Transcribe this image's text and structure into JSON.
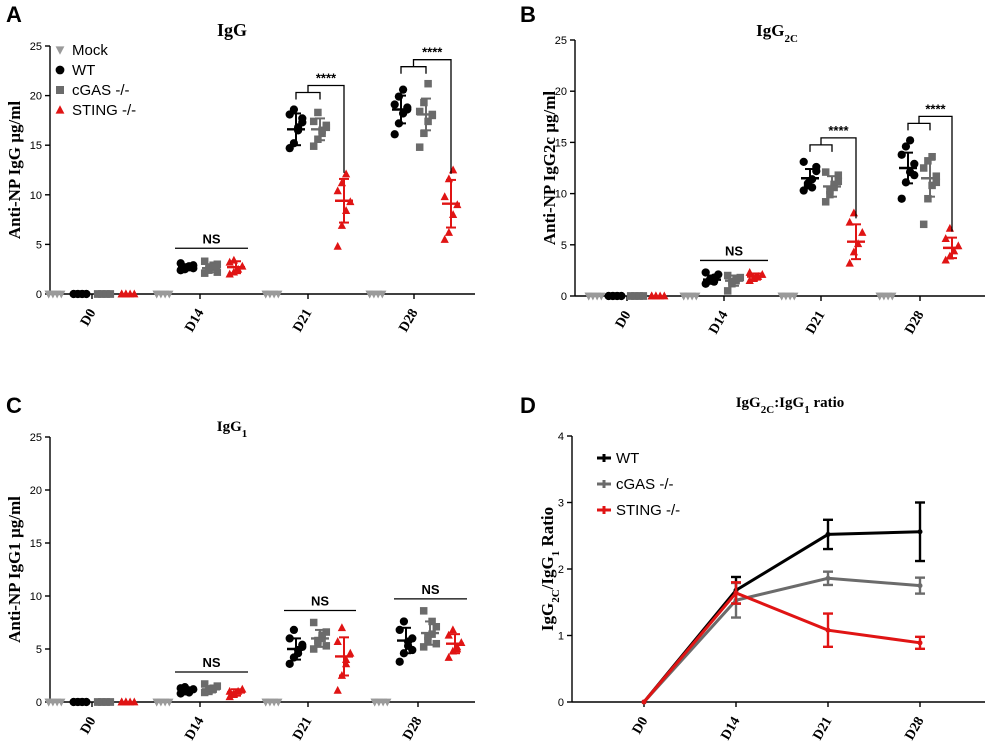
{
  "chart_data": [
    {
      "panel": "A",
      "type": "scatter",
      "title": "IgG",
      "ylabel": "Anti-NP IgG µg/ml",
      "ylim": [
        0,
        25
      ],
      "yticks": [
        0,
        5,
        10,
        15,
        20,
        25
      ],
      "categories": [
        "D0",
        "D14",
        "D21",
        "D28"
      ],
      "legend": [
        "Mock",
        "WT",
        "cGAS -/-",
        "STING -/-"
      ],
      "series": [
        {
          "name": "Mock",
          "color": "#9a9a9a",
          "marker": "triangle-down",
          "values": [
            [
              0,
              0,
              0,
              0,
              0
            ],
            [
              0,
              0,
              0,
              0,
              0
            ],
            [
              0,
              0,
              0,
              0,
              0
            ],
            [
              0,
              0,
              0,
              0,
              0
            ]
          ],
          "mean": [
            0,
            0,
            0,
            0
          ],
          "sd": [
            0,
            0,
            0,
            0
          ]
        },
        {
          "name": "WT",
          "color": "#000000",
          "marker": "circle",
          "values": [
            [
              0,
              0,
              0,
              0,
              0,
              0,
              0,
              0
            ],
            [
              2.4,
              2.6,
              2.7,
              2.9,
              3.1,
              2.5,
              2.8,
              2.6
            ],
            [
              14.7,
              15.2,
              16.5,
              17.3,
              18.1,
              18.6,
              16.8,
              17.7
            ],
            [
              16.1,
              17.2,
              18.2,
              18.6,
              19.1,
              19.9,
              20.6,
              18.8
            ]
          ],
          "mean": [
            0,
            2.7,
            16.6,
            18.6
          ],
          "sd": [
            0,
            0.3,
            1.6,
            1.4
          ]
        },
        {
          "name": "cGAS -/-",
          "color": "#6b6b6b",
          "marker": "square",
          "values": [
            [
              0,
              0,
              0,
              0,
              0,
              0,
              0,
              0
            ],
            [
              2.1,
              2.4,
              2.7,
              3.0,
              3.3,
              2.6,
              2.9,
              2.2
            ],
            [
              14.9,
              15.6,
              16.2,
              16.8,
              17.4,
              18.3,
              16.5,
              17.0
            ],
            [
              14.8,
              16.2,
              17.4,
              18.0,
              18.4,
              19.3,
              21.2,
              18.1
            ]
          ],
          "mean": [
            0,
            2.6,
            16.6,
            18.1
          ],
          "sd": [
            0,
            0.4,
            1.1,
            1.6
          ]
        },
        {
          "name": "STING -/-",
          "color": "#e01414",
          "marker": "triangle",
          "values": [
            [
              0,
              0,
              0,
              0,
              0,
              0
            ],
            [
              2.0,
              2.2,
              2.5,
              2.8,
              3.2,
              3.4
            ],
            [
              4.8,
              6.9,
              8.4,
              9.3,
              10.4,
              11.2,
              12.1
            ],
            [
              5.5,
              6.2,
              8.0,
              9.0,
              9.8,
              11.6,
              12.5
            ]
          ],
          "mean": [
            0,
            2.7,
            9.4,
            9.1
          ],
          "sd": [
            0,
            0.6,
            2.2,
            2.4
          ]
        }
      ],
      "annotations": [
        {
          "group": "D14",
          "text": "NS"
        },
        {
          "group": "D21",
          "text": "****"
        },
        {
          "group": "D28",
          "text": "****"
        }
      ]
    },
    {
      "panel": "B",
      "type": "scatter",
      "title": "IgG",
      "title_sub": "2C",
      "ylabel": "Anti-NP IgG2c µg/ml",
      "ylim": [
        0,
        25
      ],
      "yticks": [
        0,
        5,
        10,
        15,
        20,
        25
      ],
      "categories": [
        "D0",
        "D14",
        "D21",
        "D28"
      ],
      "series": [
        {
          "name": "Mock",
          "color": "#9a9a9a",
          "marker": "triangle-down",
          "values": [
            [
              0,
              0,
              0,
              0,
              0
            ],
            [
              0,
              0,
              0,
              0,
              0
            ],
            [
              0,
              0,
              0,
              0,
              0
            ],
            [
              0,
              0,
              0,
              0,
              0
            ]
          ],
          "mean": [
            0,
            0,
            0,
            0
          ],
          "sd": [
            0,
            0,
            0,
            0
          ]
        },
        {
          "name": "WT",
          "color": "#000000",
          "marker": "circle",
          "values": [
            [
              0,
              0,
              0,
              0,
              0,
              0,
              0,
              0
            ],
            [
              1.2,
              1.5,
              1.8,
              2.1,
              2.3,
              1.6,
              1.4
            ],
            [
              10.3,
              10.8,
              11.4,
              12.2,
              13.1,
              11.0,
              10.6,
              12.6
            ],
            [
              9.5,
              11.1,
              12.1,
              12.9,
              13.8,
              14.6,
              15.2,
              11.8
            ]
          ],
          "mean": [
            0,
            1.6,
            11.5,
            12.5
          ],
          "sd": [
            0,
            0.4,
            0.9,
            1.5
          ]
        },
        {
          "name": "cGAS -/-",
          "color": "#6b6b6b",
          "marker": "square",
          "values": [
            [
              0,
              0,
              0,
              0,
              0,
              0,
              0,
              0
            ],
            [
              0.5,
              1.2,
              1.5,
              1.8,
              2.0,
              1.4,
              1.7
            ],
            [
              9.2,
              9.9,
              10.6,
              11.2,
              12.1,
              10.3,
              10.9,
              11.8
            ],
            [
              7.0,
              9.5,
              10.8,
              11.7,
              12.5,
              13.2,
              13.6,
              11.1
            ]
          ],
          "mean": [
            0,
            1.5,
            10.7,
            11.5
          ],
          "sd": [
            0,
            0.5,
            1.0,
            1.8
          ]
        },
        {
          "name": "STING -/-",
          "color": "#e01414",
          "marker": "triangle",
          "values": [
            [
              0,
              0,
              0,
              0,
              0,
              0
            ],
            [
              1.5,
              1.7,
              1.9,
              2.1,
              2.3,
              1.8
            ],
            [
              3.2,
              4.3,
              5.1,
              6.2,
              7.2,
              8.1
            ],
            [
              3.5,
              3.9,
              4.4,
              4.9,
              5.6,
              6.6
            ]
          ],
          "mean": [
            0,
            1.9,
            5.3,
            4.7
          ],
          "sd": [
            0,
            0.3,
            1.7,
            1.0
          ]
        }
      ],
      "annotations": [
        {
          "group": "D14",
          "text": "NS"
        },
        {
          "group": "D21",
          "text": "****"
        },
        {
          "group": "D28",
          "text": "****"
        }
      ]
    },
    {
      "panel": "C",
      "type": "scatter",
      "title": "IgG",
      "title_sub": "1",
      "ylabel": "Anti-NP IgG1 µg/ml",
      "ylim": [
        0,
        25
      ],
      "yticks": [
        0,
        5,
        10,
        15,
        20,
        25
      ],
      "categories": [
        "D0",
        "D14",
        "D21",
        "D28"
      ],
      "series": [
        {
          "name": "Mock",
          "color": "#9a9a9a",
          "marker": "triangle-down",
          "values": [
            [
              0,
              0,
              0,
              0,
              0
            ],
            [
              0,
              0,
              0,
              0,
              0
            ],
            [
              0,
              0,
              0,
              0,
              0
            ],
            [
              0,
              0,
              0,
              0,
              0
            ]
          ],
          "mean": [
            0,
            0,
            0,
            0
          ],
          "sd": [
            0,
            0,
            0,
            0
          ]
        },
        {
          "name": "WT",
          "color": "#000000",
          "marker": "circle",
          "values": [
            [
              0,
              0,
              0,
              0,
              0,
              0,
              0,
              0
            ],
            [
              0.8,
              1.0,
              1.1,
              1.2,
              1.3,
              1.4,
              0.9
            ],
            [
              3.6,
              4.2,
              4.9,
              5.4,
              6.0,
              6.8,
              4.6,
              5.2
            ],
            [
              3.8,
              4.6,
              5.3,
              6.0,
              6.8,
              7.6,
              5.7,
              4.9
            ]
          ],
          "mean": [
            0,
            1.1,
            5.0,
            5.8
          ],
          "sd": [
            0,
            0.2,
            1.0,
            1.2
          ]
        },
        {
          "name": "cGAS -/-",
          "color": "#6b6b6b",
          "marker": "square",
          "values": [
            [
              0,
              0,
              0,
              0,
              0,
              0,
              0,
              0
            ],
            [
              0.9,
              1.1,
              1.3,
              1.5,
              1.7,
              1.0,
              1.2
            ],
            [
              5.0,
              5.5,
              6.0,
              6.6,
              7.5,
              5.8,
              6.3,
              5.3
            ],
            [
              5.2,
              5.8,
              6.4,
              7.1,
              8.6,
              6.2,
              7.6,
              5.5
            ]
          ],
          "mean": [
            0,
            1.2,
            6.0,
            6.5
          ],
          "sd": [
            0,
            0.3,
            0.8,
            1.1
          ]
        },
        {
          "name": "STING -/-",
          "color": "#e01414",
          "marker": "triangle",
          "values": [
            [
              0,
              0,
              0,
              0,
              0,
              0
            ],
            [
              0.5,
              0.8,
              1.0,
              1.2,
              1.0,
              0.7
            ],
            [
              1.1,
              2.5,
              3.6,
              4.6,
              5.7,
              7.0,
              4.0
            ],
            [
              4.2,
              4.8,
              5.2,
              5.6,
              6.3,
              6.8,
              5.0
            ]
          ],
          "mean": [
            0,
            0.9,
            4.3,
            5.5
          ],
          "sd": [
            0,
            0.3,
            1.8,
            0.9
          ]
        }
      ],
      "annotations": [
        {
          "group": "D14",
          "text": "NS"
        },
        {
          "group": "D21",
          "text": "NS"
        },
        {
          "group": "D28",
          "text": "NS"
        }
      ]
    },
    {
      "panel": "D",
      "type": "line",
      "title_parts": [
        "IgG",
        "2C",
        ":IgG",
        "1",
        " ratio"
      ],
      "ylabel_parts": [
        "IgG",
        "2C",
        "/IgG",
        "1",
        " Ratio"
      ],
      "ylim": [
        0,
        4
      ],
      "yticks": [
        0,
        1,
        2,
        3,
        4
      ],
      "categories": [
        "D0",
        "D14",
        "D21",
        "D28"
      ],
      "legend": [
        "WT",
        "cGAS -/-",
        "STING -/-"
      ],
      "series": [
        {
          "name": "WT",
          "color": "#000000",
          "values": [
            0,
            1.68,
            2.52,
            2.56
          ],
          "err": [
            0,
            0.2,
            0.22,
            0.44
          ]
        },
        {
          "name": "cGAS -/-",
          "color": "#6b6b6b",
          "values": [
            0,
            1.53,
            1.86,
            1.75
          ],
          "err": [
            0,
            0.26,
            0.1,
            0.12
          ]
        },
        {
          "name": "STING -/-",
          "color": "#e01414",
          "values": [
            0,
            1.64,
            1.08,
            0.89
          ],
          "err": [
            0,
            0.16,
            0.25,
            0.09
          ]
        }
      ]
    }
  ]
}
